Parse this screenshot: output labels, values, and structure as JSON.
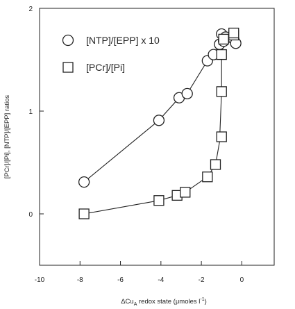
{
  "chart_data": {
    "type": "scatter",
    "xlabel": "ΔCuA redox state (μmoles l⁻¹)",
    "xlabel_parts": {
      "delta_cu": "ΔCu",
      "subscript": "A",
      "rest_1": " redox state (μmoles l",
      "superscript": "-1",
      "rest_2": ")"
    },
    "ylabel": "[PCr]/[Pi], [NTP]/[EPP]  ratios",
    "xlim": [
      -10,
      1.6
    ],
    "ylim": [
      -0.5,
      2
    ],
    "x_ticks": [
      -10,
      -8,
      -6,
      -4,
      -2,
      0
    ],
    "x_tick_labels": [
      "-10",
      "-8",
      "-6",
      "-4",
      "-2",
      "0"
    ],
    "y_ticks": [
      0,
      1,
      2
    ],
    "y_tick_labels": [
      "0",
      "1",
      "2"
    ],
    "legend_position": "top-left",
    "series": [
      {
        "name": "[NTP]/[EPP] x 10",
        "marker": "circle",
        "points": [
          {
            "x": -7.8,
            "y": 0.31
          },
          {
            "x": -4.1,
            "y": 0.91
          },
          {
            "x": -3.1,
            "y": 1.13
          },
          {
            "x": -2.7,
            "y": 1.17
          },
          {
            "x": -1.7,
            "y": 1.49
          },
          {
            "x": -1.4,
            "y": 1.55
          },
          {
            "x": -1.1,
            "y": 1.65
          },
          {
            "x": -1.0,
            "y": 1.75
          },
          {
            "x": -0.9,
            "y": 1.68
          },
          {
            "x": -0.8,
            "y": 1.72
          },
          {
            "x": -0.4,
            "y": 1.7
          },
          {
            "x": -0.3,
            "y": 1.66
          }
        ],
        "fit_line": [
          [
            -7.8,
            0.31
          ],
          [
            -4.1,
            0.91
          ],
          [
            -3.1,
            1.13
          ],
          [
            -2.7,
            1.17
          ],
          [
            -1.7,
            1.49
          ],
          [
            -1.4,
            1.55
          ],
          [
            -1.0,
            1.68
          ],
          [
            -0.7,
            1.74
          ],
          [
            -0.4,
            1.73
          ]
        ]
      },
      {
        "name": "[PCr]/[Pi]",
        "marker": "square",
        "points": [
          {
            "x": -7.8,
            "y": 0.0
          },
          {
            "x": -4.1,
            "y": 0.13
          },
          {
            "x": -3.2,
            "y": 0.18
          },
          {
            "x": -2.8,
            "y": 0.21
          },
          {
            "x": -1.7,
            "y": 0.36
          },
          {
            "x": -1.3,
            "y": 0.48
          },
          {
            "x": -1.0,
            "y": 0.75
          },
          {
            "x": -1.0,
            "y": 1.19
          },
          {
            "x": -1.0,
            "y": 1.55
          },
          {
            "x": -0.9,
            "y": 1.7
          },
          {
            "x": -0.4,
            "y": 1.74
          },
          {
            "x": -0.4,
            "y": 1.76
          }
        ],
        "fit_line": [
          [
            -7.8,
            0.0
          ],
          [
            -4.1,
            0.13
          ],
          [
            -3.2,
            0.18
          ],
          [
            -2.8,
            0.21
          ],
          [
            -1.7,
            0.36
          ],
          [
            -1.3,
            0.48
          ],
          [
            -1.1,
            0.7
          ],
          [
            -1.0,
            1.19
          ],
          [
            -1.0,
            1.55
          ],
          [
            -0.9,
            1.7
          ],
          [
            -0.4,
            1.75
          ]
        ]
      }
    ]
  }
}
